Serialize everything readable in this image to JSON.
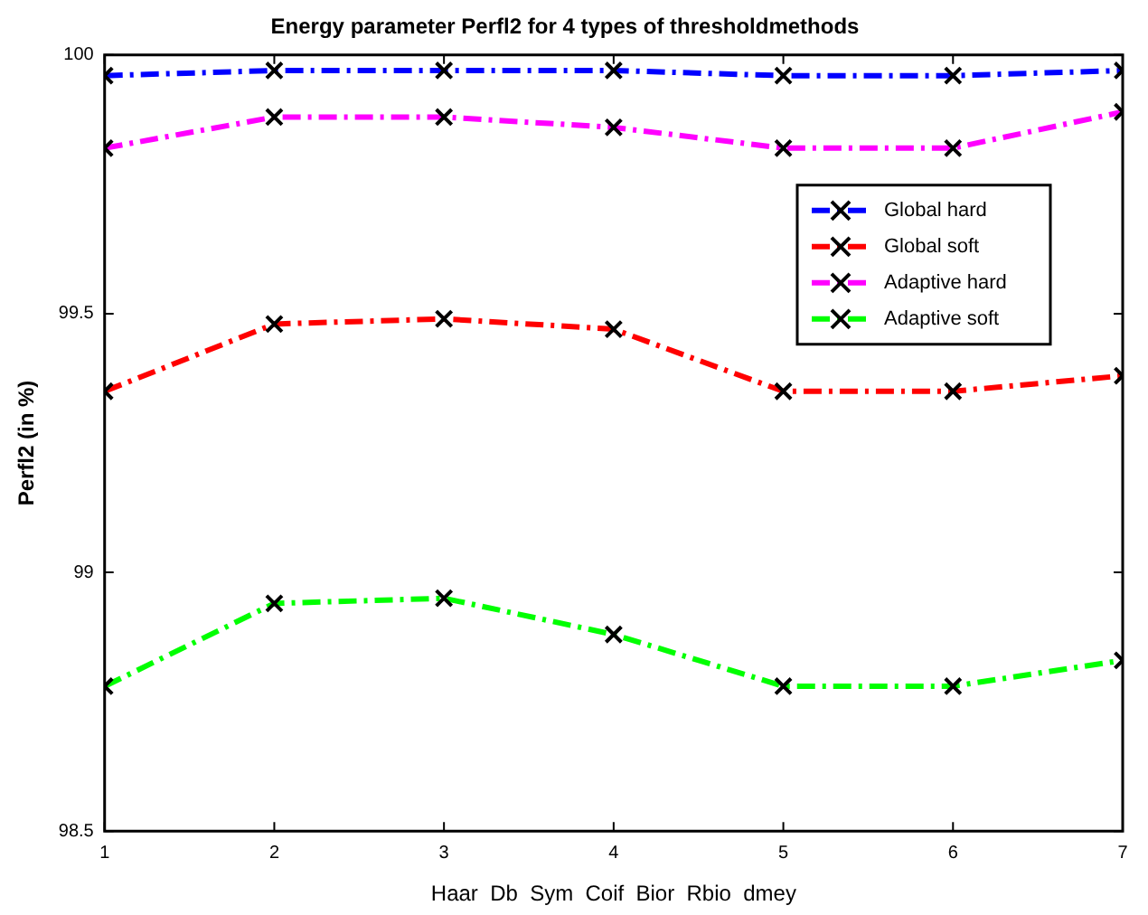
{
  "chart_data": {
    "type": "line",
    "title": "Energy parameter Perfl2 for 4 types of thresholdmethods",
    "xlabel": "Haar  Db  Sym  Coif  Bior  Rbio  dmey",
    "ylabel": "Perfl2 (in %)",
    "x": [
      1,
      2,
      3,
      4,
      5,
      6,
      7
    ],
    "series": [
      {
        "name": "Global hard",
        "color": "#0000ff",
        "values": [
          99.96,
          99.97,
          99.97,
          99.97,
          99.96,
          99.96,
          99.97
        ]
      },
      {
        "name": "Global soft",
        "color": "#ff0000",
        "values": [
          99.35,
          99.48,
          99.49,
          99.47,
          99.35,
          99.35,
          99.38
        ]
      },
      {
        "name": "Adaptive hard",
        "color": "#ff00ff",
        "values": [
          99.82,
          99.88,
          99.88,
          99.86,
          99.82,
          99.82,
          99.89
        ]
      },
      {
        "name": "Adaptive soft",
        "color": "#00ff00",
        "values": [
          98.78,
          98.94,
          98.95,
          98.88,
          98.78,
          98.78,
          98.83
        ]
      }
    ],
    "xlim": [
      1,
      7
    ],
    "xticks": [
      1,
      2,
      3,
      4,
      5,
      6,
      7
    ],
    "ylim": [
      98.5,
      100
    ],
    "yticks": [
      98.5,
      99,
      99.5,
      100
    ],
    "grid": false,
    "legend": "top right",
    "marker": "cross",
    "line_style": "dashed"
  }
}
